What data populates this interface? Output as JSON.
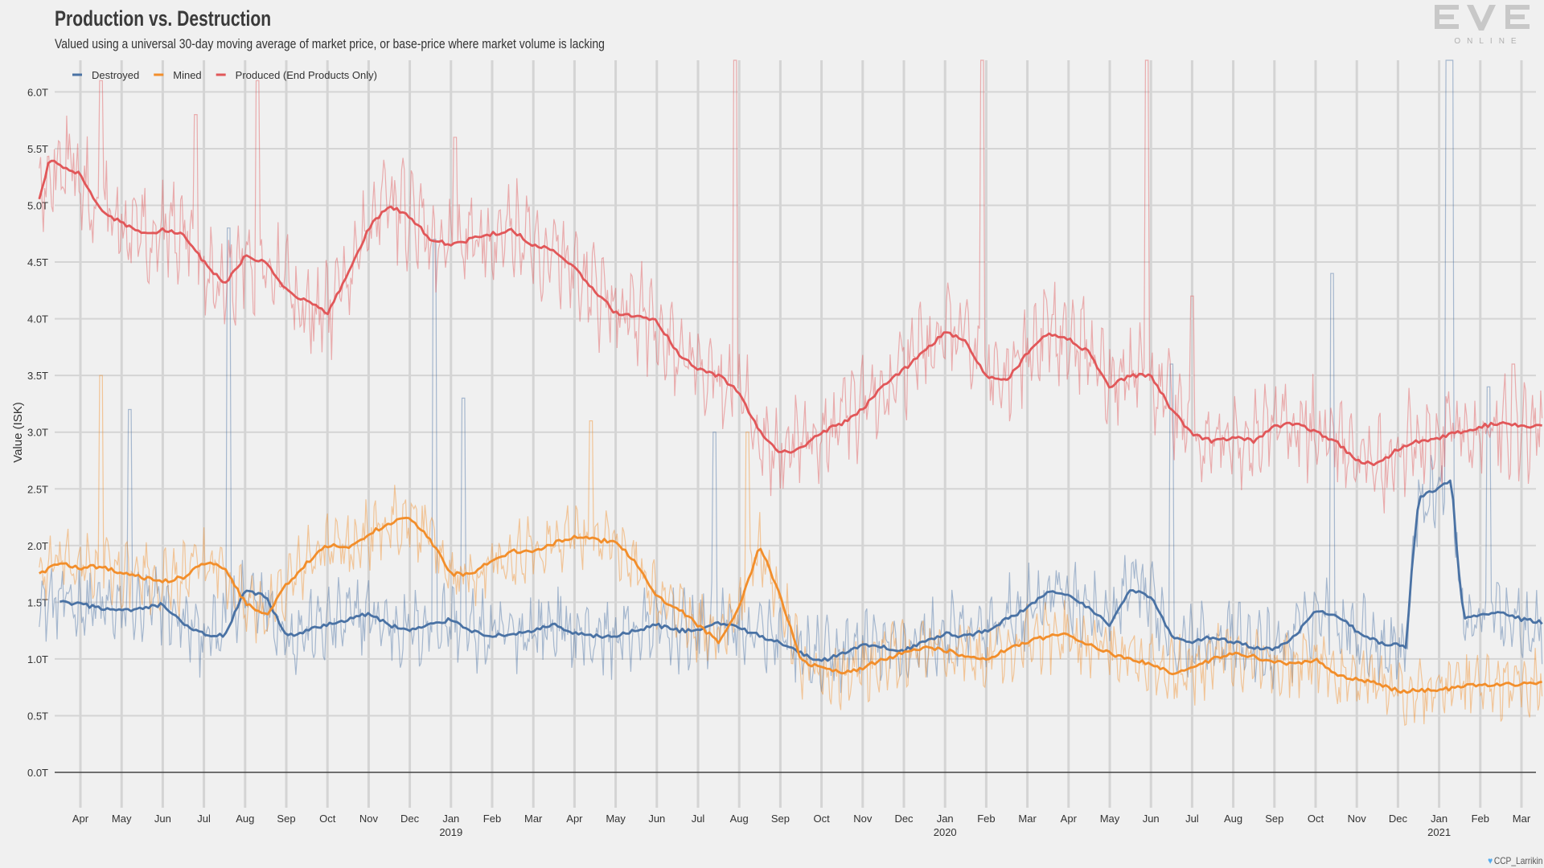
{
  "header": {
    "title": "Production vs. Destruction",
    "subtitle": "Valued using a universal 30-day moving average of market price, or base-price where market volume is lacking"
  },
  "logo": {
    "text": "EVE",
    "subtext": "ONLINE"
  },
  "credit": "CCP_Larrikin",
  "chart_data": {
    "type": "line",
    "title": "Production vs. Destruction",
    "subtitle": "Valued using a universal 30-day moving average of market price, or base-price where market volume is lacking",
    "xlabel": "",
    "ylabel": "Value (ISK)",
    "ylim": [
      0,
      6.0
    ],
    "y_unit": "T",
    "yticks": [
      0,
      0.5,
      1.0,
      1.5,
      2.0,
      2.5,
      3.0,
      3.5,
      4.0,
      4.5,
      5.0,
      5.5,
      6.0
    ],
    "ytick_labels": [
      "0.0T",
      "0.5T",
      "1.0T",
      "1.5T",
      "2.0T",
      "2.5T",
      "3.0T",
      "3.5T",
      "4.0T",
      "4.5T",
      "5.0T",
      "5.5T",
      "6.0T"
    ],
    "grid": true,
    "legend_position": "top-left",
    "x_start": "2018-03-15",
    "x_end": "2021-03-15",
    "month_ticks": [
      {
        "m": 1,
        "label": "Apr",
        "year": ""
      },
      {
        "m": 2,
        "label": "May",
        "year": ""
      },
      {
        "m": 3,
        "label": "Jun",
        "year": ""
      },
      {
        "m": 4,
        "label": "Jul",
        "year": ""
      },
      {
        "m": 5,
        "label": "Aug",
        "year": ""
      },
      {
        "m": 6,
        "label": "Sep",
        "year": ""
      },
      {
        "m": 7,
        "label": "Oct",
        "year": ""
      },
      {
        "m": 8,
        "label": "Nov",
        "year": ""
      },
      {
        "m": 9,
        "label": "Dec",
        "year": ""
      },
      {
        "m": 10,
        "label": "Jan",
        "year": "2019"
      },
      {
        "m": 11,
        "label": "Feb",
        "year": ""
      },
      {
        "m": 12,
        "label": "Mar",
        "year": ""
      },
      {
        "m": 13,
        "label": "Apr",
        "year": ""
      },
      {
        "m": 14,
        "label": "May",
        "year": ""
      },
      {
        "m": 15,
        "label": "Jun",
        "year": ""
      },
      {
        "m": 16,
        "label": "Jul",
        "year": ""
      },
      {
        "m": 17,
        "label": "Aug",
        "year": ""
      },
      {
        "m": 18,
        "label": "Sep",
        "year": ""
      },
      {
        "m": 19,
        "label": "Oct",
        "year": ""
      },
      {
        "m": 20,
        "label": "Nov",
        "year": ""
      },
      {
        "m": 21,
        "label": "Dec",
        "year": ""
      },
      {
        "m": 22,
        "label": "Jan",
        "year": "2020"
      },
      {
        "m": 23,
        "label": "Feb",
        "year": ""
      },
      {
        "m": 24,
        "label": "Mar",
        "year": ""
      },
      {
        "m": 25,
        "label": "Apr",
        "year": ""
      },
      {
        "m": 26,
        "label": "May",
        "year": ""
      },
      {
        "m": 27,
        "label": "Jun",
        "year": ""
      },
      {
        "m": 28,
        "label": "Jul",
        "year": ""
      },
      {
        "m": 29,
        "label": "Aug",
        "year": ""
      },
      {
        "m": 30,
        "label": "Sep",
        "year": ""
      },
      {
        "m": 31,
        "label": "Oct",
        "year": ""
      },
      {
        "m": 32,
        "label": "Nov",
        "year": ""
      },
      {
        "m": 33,
        "label": "Dec",
        "year": ""
      },
      {
        "m": 34,
        "label": "Jan",
        "year": "2021"
      },
      {
        "m": 35,
        "label": "Feb",
        "year": ""
      },
      {
        "m": 36,
        "label": "Mar",
        "year": ""
      }
    ],
    "x_unit_note": "x = months since 2018-03-01",
    "series": [
      {
        "name": "Destroyed",
        "color": "#4a72a4",
        "x": [
          0.5,
          1.0,
          1.5,
          2.0,
          2.5,
          3.0,
          3.5,
          4.0,
          4.5,
          5.0,
          5.5,
          6.0,
          6.5,
          7.0,
          7.5,
          8.0,
          8.5,
          9.0,
          9.5,
          10.0,
          10.5,
          11.0,
          11.5,
          12.0,
          12.5,
          13.0,
          13.5,
          14.0,
          14.5,
          15.0,
          15.5,
          16.0,
          16.5,
          17.0,
          17.5,
          18.0,
          18.5,
          19.0,
          19.5,
          20.0,
          20.5,
          21.0,
          21.5,
          22.0,
          22.5,
          23.0,
          23.5,
          24.0,
          24.5,
          25.0,
          25.5,
          26.0,
          26.5,
          27.0,
          27.5,
          28.0,
          28.5,
          29.0,
          29.5,
          30.0,
          30.5,
          31.0,
          31.5,
          32.0,
          32.5,
          33.0,
          33.2,
          33.35,
          33.5,
          33.8,
          34.0,
          34.2,
          34.3,
          34.45,
          34.6,
          34.8,
          35.0,
          35.5,
          36.0,
          36.5
        ],
        "values": [
          1.5,
          1.48,
          1.45,
          1.42,
          1.44,
          1.48,
          1.3,
          1.22,
          1.2,
          1.6,
          1.55,
          1.2,
          1.25,
          1.3,
          1.35,
          1.4,
          1.3,
          1.25,
          1.3,
          1.35,
          1.25,
          1.2,
          1.22,
          1.25,
          1.3,
          1.22,
          1.2,
          1.2,
          1.25,
          1.3,
          1.25,
          1.25,
          1.32,
          1.28,
          1.2,
          1.15,
          1.05,
          0.98,
          1.05,
          1.12,
          1.1,
          1.08,
          1.15,
          1.22,
          1.2,
          1.25,
          1.35,
          1.45,
          1.6,
          1.55,
          1.45,
          1.3,
          1.62,
          1.55,
          1.2,
          1.15,
          1.2,
          1.15,
          1.1,
          1.08,
          1.2,
          1.42,
          1.38,
          1.25,
          1.15,
          1.12,
          1.1,
          1.85,
          2.42,
          2.48,
          2.5,
          2.55,
          2.6,
          1.85,
          1.35,
          1.38,
          1.4,
          1.42,
          1.35,
          1.32
        ]
      },
      {
        "name": "Mined",
        "color": "#f28e2b",
        "x": [
          0.0,
          0.5,
          1.0,
          1.5,
          2.0,
          2.5,
          3.0,
          3.5,
          4.0,
          4.5,
          5.0,
          5.5,
          6.0,
          6.5,
          7.0,
          7.5,
          8.0,
          8.5,
          9.0,
          9.5,
          10.0,
          10.5,
          11.0,
          11.5,
          12.0,
          12.5,
          13.0,
          13.5,
          14.0,
          14.5,
          15.0,
          15.5,
          16.0,
          16.5,
          17.0,
          17.5,
          18.0,
          18.5,
          19.0,
          19.5,
          20.0,
          20.5,
          21.0,
          21.5,
          22.0,
          22.5,
          23.0,
          23.5,
          24.0,
          24.5,
          25.0,
          25.5,
          26.0,
          26.5,
          27.0,
          27.5,
          28.0,
          28.5,
          29.0,
          29.5,
          30.0,
          30.5,
          31.0,
          31.5,
          32.0,
          32.5,
          33.0,
          33.5,
          34.0,
          34.5,
          35.0,
          35.5,
          36.0,
          36.5
        ],
        "values": [
          1.75,
          1.85,
          1.8,
          1.82,
          1.75,
          1.72,
          1.68,
          1.72,
          1.85,
          1.8,
          1.5,
          1.38,
          1.65,
          1.85,
          2.0,
          1.98,
          2.1,
          2.2,
          2.25,
          2.05,
          1.75,
          1.75,
          1.88,
          1.95,
          1.95,
          2.02,
          2.08,
          2.05,
          2.03,
          1.85,
          1.55,
          1.45,
          1.3,
          1.15,
          1.45,
          2.0,
          1.55,
          0.98,
          0.92,
          0.88,
          0.92,
          1.0,
          1.05,
          1.1,
          1.08,
          1.02,
          1.0,
          1.08,
          1.15,
          1.2,
          1.22,
          1.12,
          1.05,
          1.0,
          0.95,
          0.88,
          0.92,
          1.0,
          1.05,
          1.02,
          0.98,
          0.95,
          1.0,
          0.85,
          0.82,
          0.78,
          0.72,
          0.72,
          0.73,
          0.75,
          0.78,
          0.77,
          0.78,
          0.8
        ]
      },
      {
        "name": "Produced (End Products Only)",
        "color": "#e15759",
        "x": [
          0.0,
          0.25,
          0.5,
          1.0,
          1.5,
          2.0,
          2.5,
          3.0,
          3.5,
          4.0,
          4.5,
          5.0,
          5.5,
          6.0,
          6.5,
          7.0,
          7.5,
          8.0,
          8.5,
          9.0,
          9.5,
          10.0,
          10.5,
          11.0,
          11.5,
          12.0,
          12.5,
          13.0,
          13.5,
          14.0,
          14.5,
          15.0,
          15.5,
          16.0,
          16.5,
          17.0,
          17.5,
          18.0,
          18.5,
          19.0,
          19.5,
          20.0,
          20.5,
          21.0,
          21.5,
          22.0,
          22.5,
          23.0,
          23.5,
          24.0,
          24.5,
          25.0,
          25.5,
          26.0,
          26.5,
          27.0,
          27.5,
          28.0,
          28.5,
          29.0,
          29.5,
          30.0,
          30.5,
          31.0,
          31.5,
          32.0,
          32.5,
          33.0,
          33.5,
          34.0,
          34.5,
          35.0,
          35.5,
          36.0,
          36.5
        ],
        "values": [
          5.05,
          5.4,
          5.35,
          5.28,
          4.95,
          4.85,
          4.75,
          4.78,
          4.75,
          4.5,
          4.3,
          4.55,
          4.5,
          4.25,
          4.15,
          4.05,
          4.4,
          4.8,
          5.0,
          4.9,
          4.7,
          4.65,
          4.7,
          4.75,
          4.78,
          4.65,
          4.6,
          4.45,
          4.25,
          4.05,
          4.02,
          3.98,
          3.7,
          3.55,
          3.5,
          3.35,
          3.0,
          2.82,
          2.85,
          3.0,
          3.08,
          3.2,
          3.42,
          3.55,
          3.72,
          3.88,
          3.8,
          3.5,
          3.45,
          3.7,
          3.88,
          3.82,
          3.7,
          3.4,
          3.5,
          3.5,
          3.2,
          2.98,
          2.92,
          2.95,
          2.92,
          3.05,
          3.08,
          3.0,
          2.92,
          2.75,
          2.72,
          2.85,
          2.92,
          2.95,
          3.0,
          3.05,
          3.08,
          3.05,
          3.05
        ]
      }
    ],
    "daily_noise_amplitude": [
      0.35,
      0.3,
      0.45
    ],
    "daily_spikes": {
      "Destroyed": [
        {
          "x": 2.2,
          "y": 3.2
        },
        {
          "x": 4.6,
          "y": 4.8
        },
        {
          "x": 9.6,
          "y": 4.7
        },
        {
          "x": 10.3,
          "y": 3.3
        },
        {
          "x": 16.4,
          "y": 3.0
        },
        {
          "x": 27.5,
          "y": 3.6
        },
        {
          "x": 31.4,
          "y": 4.4
        },
        {
          "x": 34.2,
          "y": 6.3
        },
        {
          "x": 34.3,
          "y": 6.3
        },
        {
          "x": 35.2,
          "y": 3.4
        }
      ],
      "Mined": [
        {
          "x": 1.5,
          "y": 3.5
        },
        {
          "x": 13.4,
          "y": 3.1
        },
        {
          "x": 17.2,
          "y": 3.0
        }
      ],
      "Produced (End Products Only)": [
        {
          "x": 1.5,
          "y": 6.1
        },
        {
          "x": 3.8,
          "y": 5.8
        },
        {
          "x": 5.3,
          "y": 6.1
        },
        {
          "x": 10.1,
          "y": 5.6
        },
        {
          "x": 16.9,
          "y": 6.3
        },
        {
          "x": 22.9,
          "y": 6.3
        },
        {
          "x": 26.9,
          "y": 6.3
        },
        {
          "x": 28.0,
          "y": 4.2
        },
        {
          "x": 35.8,
          "y": 3.6
        }
      ]
    }
  }
}
